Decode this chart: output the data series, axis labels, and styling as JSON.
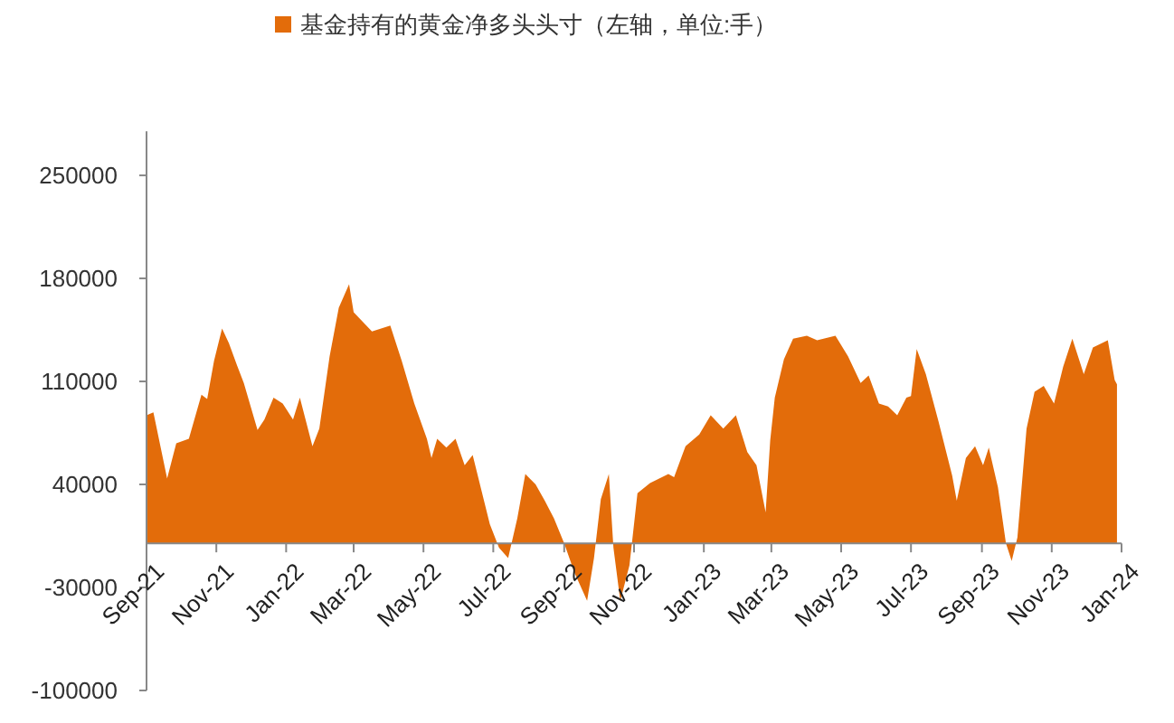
{
  "chart_data": {
    "type": "area",
    "legend": "top",
    "x": [
      "2021-09-01",
      "2021-09-07",
      "2021-09-19",
      "2021-09-27",
      "2021-10-08",
      "2021-10-19",
      "2021-10-24",
      "2021-10-30",
      "2021-11-06",
      "2021-11-12",
      "2021-11-19",
      "2021-11-25",
      "2021-12-07",
      "2021-12-13",
      "2021-12-21",
      "2021-12-29",
      "2022-01-07",
      "2022-01-13",
      "2022-01-24",
      "2022-01-30",
      "2022-02-08",
      "2022-02-16",
      "2022-02-25",
      "2022-03-01",
      "2022-03-17",
      "2022-04-02",
      "2022-04-12",
      "2022-04-23",
      "2022-05-04",
      "2022-05-08",
      "2022-05-13",
      "2022-05-21",
      "2022-05-29",
      "2022-06-06",
      "2022-06-13",
      "2022-06-20",
      "2022-06-28",
      "2022-07-06",
      "2022-07-14",
      "2022-07-22",
      "2022-07-29",
      "2022-08-07",
      "2022-08-15",
      "2022-08-23",
      "2022-09-01",
      "2022-09-10",
      "2022-09-21",
      "2022-09-27",
      "2022-10-03",
      "2022-10-10",
      "2022-10-14",
      "2022-10-20",
      "2022-10-28",
      "2022-11-04",
      "2022-11-15",
      "2022-11-23",
      "2022-12-01",
      "2022-12-06",
      "2022-12-16",
      "2022-12-28",
      "2023-01-07",
      "2023-01-18",
      "2023-01-29",
      "2023-02-08",
      "2023-02-16",
      "2023-02-24",
      "2023-02-28",
      "2023-03-04",
      "2023-03-12",
      "2023-03-20",
      "2023-04-01",
      "2023-04-10",
      "2023-04-26",
      "2023-05-07",
      "2023-05-18",
      "2023-05-25",
      "2023-06-03",
      "2023-06-11",
      "2023-06-19",
      "2023-06-27",
      "2023-07-01",
      "2023-07-06",
      "2023-07-14",
      "2023-07-25",
      "2023-08-06",
      "2023-08-10",
      "2023-08-18",
      "2023-08-26",
      "2023-09-02",
      "2023-09-07",
      "2023-09-15",
      "2023-09-22",
      "2023-09-27",
      "2023-10-02",
      "2023-10-10",
      "2023-10-17",
      "2023-10-25",
      "2023-11-03",
      "2023-11-11",
      "2023-11-19",
      "2023-11-29",
      "2023-12-07",
      "2023-12-20",
      "2023-12-26",
      "2023-12-28"
    ],
    "series": [
      {
        "name": "基金持有的黄金净多头头寸（左轴，单位:手）",
        "color": "#e36c0a",
        "values": [
          87000,
          89000,
          44000,
          68000,
          71000,
          101000,
          98000,
          124000,
          146000,
          136000,
          121000,
          109000,
          77000,
          84000,
          99000,
          95000,
          84000,
          99000,
          66000,
          78000,
          127000,
          160000,
          176000,
          157000,
          144000,
          148000,
          124000,
          95000,
          71000,
          58000,
          71000,
          65000,
          71000,
          53000,
          60000,
          38000,
          13000,
          -3000,
          -10000,
          17000,
          47000,
          40000,
          29000,
          17000,
          0,
          -20000,
          -39000,
          -10000,
          30000,
          47000,
          -3000,
          -39000,
          -15000,
          34000,
          41000,
          44000,
          47000,
          45000,
          66000,
          74000,
          87000,
          78000,
          87000,
          62000,
          53000,
          21000,
          70000,
          99000,
          125000,
          139000,
          141000,
          138000,
          141000,
          127000,
          109000,
          114000,
          95000,
          93000,
          87000,
          99000,
          100000,
          132000,
          115000,
          83000,
          46000,
          29000,
          58000,
          66000,
          53000,
          65000,
          38000,
          0,
          -12000,
          4000,
          78000,
          103000,
          107000,
          95000,
          120000,
          139000,
          115000,
          133000,
          138000,
          111000,
          108000
        ]
      }
    ],
    "xlim": [
      "2021-09-01",
      "2024-01-01"
    ],
    "xticks": [
      {
        "value": "2021-09-01",
        "label": "Sep-21"
      },
      {
        "value": "2021-11-01",
        "label": "Nov-21"
      },
      {
        "value": "2022-01-01",
        "label": "Jan-22"
      },
      {
        "value": "2022-03-01",
        "label": "Mar-22"
      },
      {
        "value": "2022-05-01",
        "label": "May-22"
      },
      {
        "value": "2022-07-01",
        "label": "Jul-22"
      },
      {
        "value": "2022-09-01",
        "label": "Sep-22"
      },
      {
        "value": "2022-11-01",
        "label": "Nov-22"
      },
      {
        "value": "2023-01-01",
        "label": "Jan-23"
      },
      {
        "value": "2023-03-01",
        "label": "Mar-23"
      },
      {
        "value": "2023-05-01",
        "label": "May-23"
      },
      {
        "value": "2023-07-01",
        "label": "Jul-23"
      },
      {
        "value": "2023-09-01",
        "label": "Sep-23"
      },
      {
        "value": "2023-11-01",
        "label": "Nov-23"
      },
      {
        "value": "2024-01-01",
        "label": "Jan-24"
      }
    ],
    "ylim": [
      -100000,
      280000
    ],
    "yticks": [
      -100000,
      -30000,
      40000,
      110000,
      180000,
      250000
    ]
  }
}
